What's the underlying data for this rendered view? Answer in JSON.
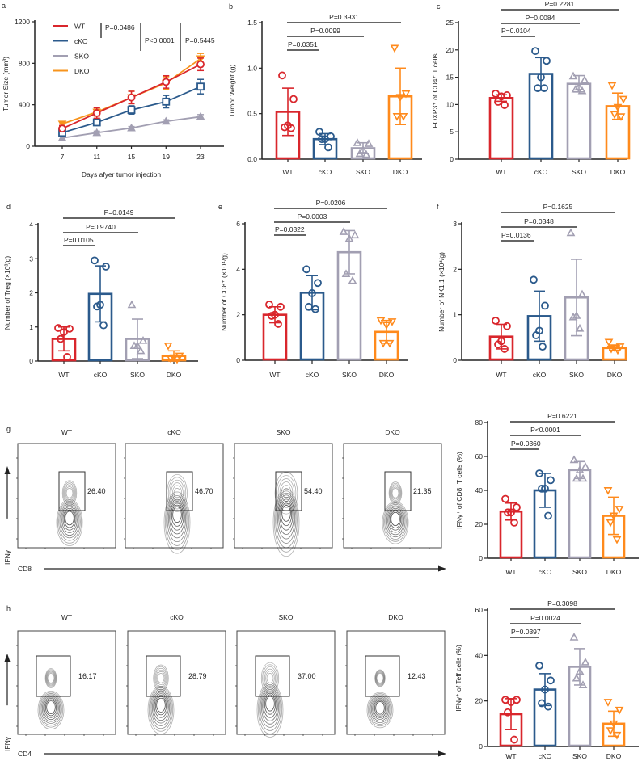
{
  "panel_labels": [
    "a",
    "b",
    "c",
    "d",
    "e",
    "f",
    "g",
    "h"
  ],
  "colors": {
    "WT": "#d9262c",
    "cKO": "#2b5a8c",
    "SKO": "#a29fb2",
    "DKO": "#ff8a1c",
    "DKO_line": "#f7941d",
    "axis": "#222222"
  },
  "chart_data": [
    {
      "id": "a",
      "type": "line",
      "xlabel": "Days afyer tumor injection",
      "ylabel": "Tumor Size (mm³)",
      "x": [
        7,
        11,
        15,
        19,
        23
      ],
      "xticks": [
        "7",
        "11",
        "15",
        "19",
        "23"
      ],
      "ylim": [
        0,
        1200
      ],
      "yticks": [
        "0",
        "400",
        "800",
        "1200"
      ],
      "legend": "top-left",
      "series": [
        {
          "name": "WT",
          "values": [
            170,
            320,
            470,
            620,
            790
          ],
          "errors": [
            30,
            50,
            60,
            60,
            60
          ]
        },
        {
          "name": "cKO",
          "values": [
            130,
            230,
            350,
            430,
            575
          ],
          "errors": [
            20,
            20,
            40,
            60,
            70
          ]
        },
        {
          "name": "SKO",
          "values": [
            80,
            130,
            175,
            240,
            285
          ],
          "errors": [
            15,
            15,
            15,
            15,
            20
          ]
        },
        {
          "name": "DKO",
          "values": [
            215,
            330,
            470,
            610,
            845
          ],
          "errors": [
            20,
            40,
            60,
            60,
            50
          ]
        }
      ],
      "annotations": [
        "P=0.0486",
        "P<0.0001",
        "P=0.5445"
      ]
    },
    {
      "id": "b",
      "type": "bar",
      "ylabel": "Tumor Weight (g)",
      "categories": [
        "WT",
        "cKO",
        "SKO",
        "DKO"
      ],
      "ylim": [
        0,
        1.5
      ],
      "yticks": [
        "0.0",
        "0.5",
        "1.0",
        "1.5"
      ],
      "series": [
        {
          "name": "WT",
          "mean": 0.52,
          "sd": 0.26,
          "points": [
            0.92,
            0.66,
            0.37,
            0.35,
            0.34
          ]
        },
        {
          "name": "cKO",
          "mean": 0.22,
          "sd": 0.06,
          "points": [
            0.3,
            0.25,
            0.22,
            0.22,
            0.13
          ]
        },
        {
          "name": "SKO",
          "mean": 0.12,
          "sd": 0.06,
          "points": [
            0.18,
            0.17,
            0.1,
            0.06,
            0.05
          ]
        },
        {
          "name": "DKO",
          "mean": 0.69,
          "sd": 0.31,
          "points": [
            1.22,
            0.72,
            0.68,
            0.47,
            0.47
          ]
        }
      ],
      "comparisons": [
        {
          "from": "WT",
          "to": "cKO",
          "label": "P=0.0351"
        },
        {
          "from": "WT",
          "to": "SKO",
          "label": "P=0.0099"
        },
        {
          "from": "WT",
          "to": "DKO",
          "label": "P=0.3931"
        }
      ]
    },
    {
      "id": "c",
      "type": "bar",
      "ylabel": "FOXP3⁺ of CD4⁺ T cells",
      "categories": [
        "WT",
        "cKO",
        "SKO",
        "DKO"
      ],
      "ylim": [
        0,
        25
      ],
      "yticks": [
        "0",
        "5",
        "10",
        "15",
        "20",
        "25"
      ],
      "series": [
        {
          "name": "WT",
          "mean": 11.2,
          "sd": 0.6,
          "points": [
            12.0,
            11.7,
            11.5,
            10.5,
            9.9
          ]
        },
        {
          "name": "cKO",
          "mean": 15.6,
          "sd": 3.0,
          "points": [
            19.8,
            18.0,
            15.0,
            13.0,
            13.0
          ]
        },
        {
          "name": "SKO",
          "mean": 13.8,
          "sd": 1.5,
          "points": [
            15.2,
            14.5,
            13.2,
            12.8,
            12.5
          ]
        },
        {
          "name": "DKO",
          "mean": 9.7,
          "sd": 2.4,
          "points": [
            13.5,
            11.0,
            9.5,
            8.2,
            7.8
          ]
        }
      ],
      "comparisons": [
        {
          "from": "WT",
          "to": "cKO",
          "label": "P=0.0104"
        },
        {
          "from": "WT",
          "to": "SKO",
          "label": "P=0.0084"
        },
        {
          "from": "WT",
          "to": "DKO",
          "label": "P=0.2281"
        }
      ]
    },
    {
      "id": "d",
      "type": "bar",
      "ylabel": "Number of Treg (×10³/g)",
      "categories": [
        "WT",
        "cKO",
        "SKO",
        "DKO"
      ],
      "ylim": [
        0,
        4
      ],
      "yticks": [
        "0",
        "1",
        "2",
        "3",
        "4"
      ],
      "series": [
        {
          "name": "WT",
          "mean": 0.65,
          "sd": 0.35,
          "points": [
            0.97,
            0.95,
            0.85,
            0.65,
            0.12
          ]
        },
        {
          "name": "cKO",
          "mean": 1.97,
          "sd": 0.82,
          "points": [
            2.95,
            2.77,
            1.65,
            1.6,
            1.05
          ]
        },
        {
          "name": "SKO",
          "mean": 0.65,
          "sd": 0.58,
          "points": [
            1.65,
            0.6,
            0.45,
            0.45,
            0.3
          ]
        },
        {
          "name": "DKO",
          "mean": 0.15,
          "sd": 0.15,
          "points": [
            0.45,
            0.15,
            0.1,
            0.08,
            0.05
          ]
        }
      ],
      "comparisons": [
        {
          "from": "WT",
          "to": "cKO",
          "label": "P=0.0105"
        },
        {
          "from": "WT",
          "to": "SKO",
          "label": "P=0.9740"
        },
        {
          "from": "WT",
          "to": "DKO",
          "label": "P=0.0149"
        }
      ]
    },
    {
      "id": "e",
      "type": "bar",
      "ylabel": "Number of CD8⁺ (×10⁴/g)",
      "categories": [
        "WT",
        "cKO",
        "SKO",
        "DKO"
      ],
      "ylim": [
        0,
        6
      ],
      "yticks": [
        "0",
        "2",
        "4",
        "6"
      ],
      "series": [
        {
          "name": "WT",
          "mean": 2.0,
          "sd": 0.35,
          "points": [
            2.45,
            2.35,
            2.0,
            1.95,
            1.6
          ]
        },
        {
          "name": "cKO",
          "mean": 2.97,
          "sd": 0.75,
          "points": [
            4.0,
            3.4,
            2.95,
            2.35,
            2.25
          ]
        },
        {
          "name": "SKO",
          "mean": 4.75,
          "sd": 0.95,
          "points": [
            5.65,
            5.5,
            5.35,
            3.8,
            3.5
          ]
        },
        {
          "name": "DKO",
          "mean": 1.25,
          "sd": 0.5,
          "points": [
            1.75,
            1.7,
            1.55,
            0.75,
            0.75
          ]
        }
      ],
      "comparisons": [
        {
          "from": "WT",
          "to": "cKO",
          "label": "P=0.0322"
        },
        {
          "from": "WT",
          "to": "SKO",
          "label": "P=0.0003"
        },
        {
          "from": "WT",
          "to": "DKO",
          "label": "P=0.0206"
        }
      ]
    },
    {
      "id": "f",
      "type": "bar",
      "ylabel": "Number of NK1.1 (×10⁴/g)",
      "categories": [
        "WT",
        "cKO",
        "SKO",
        "DKO"
      ],
      "ylim": [
        0,
        3
      ],
      "yticks": [
        "0",
        "1",
        "2",
        "3"
      ],
      "series": [
        {
          "name": "WT",
          "mean": 0.52,
          "sd": 0.27,
          "points": [
            0.87,
            0.75,
            0.42,
            0.35,
            0.25
          ]
        },
        {
          "name": "cKO",
          "mean": 0.97,
          "sd": 0.55,
          "points": [
            1.77,
            1.2,
            0.65,
            0.55,
            0.3
          ]
        },
        {
          "name": "SKO",
          "mean": 1.38,
          "sd": 0.84,
          "points": [
            2.8,
            1.45,
            0.98,
            0.95,
            0.7
          ]
        },
        {
          "name": "DKO",
          "mean": 0.27,
          "sd": 0.05,
          "points": [
            0.4,
            0.3,
            0.28,
            0.25,
            0.22
          ]
        }
      ],
      "comparisons": [
        {
          "from": "WT",
          "to": "cKO",
          "label": "P=0.0136"
        },
        {
          "from": "WT",
          "to": "SKO",
          "label": "P=0.0348"
        },
        {
          "from": "WT",
          "to": "DKO",
          "label": "P=0.1625"
        }
      ]
    },
    {
      "id": "g_flow",
      "type": "contour",
      "xlabel": "CD8",
      "ylabel": "IFNγ",
      "plots": [
        {
          "title": "WT",
          "gate_percent": "26.40"
        },
        {
          "title": "cKO",
          "gate_percent": "46.70"
        },
        {
          "title": "SKO",
          "gate_percent": "54.40"
        },
        {
          "title": "DKO",
          "gate_percent": "21.35"
        }
      ]
    },
    {
      "id": "g_bar",
      "type": "bar",
      "ylabel": "IFNγ⁺ of CD8⁺T cells (%)",
      "categories": [
        "WT",
        "cKO",
        "SKO",
        "DKO"
      ],
      "ylim": [
        0,
        80
      ],
      "yticks": [
        "0",
        "20",
        "40",
        "60",
        "80"
      ],
      "series": [
        {
          "name": "WT",
          "mean": 27.5,
          "sd": 5,
          "points": [
            35,
            30,
            27,
            27,
            21
          ]
        },
        {
          "name": "cKO",
          "mean": 40,
          "sd": 10,
          "points": [
            50,
            46,
            41,
            41,
            25
          ]
        },
        {
          "name": "SKO",
          "mean": 52,
          "sd": 5,
          "points": [
            58,
            54,
            52,
            47,
            47
          ]
        },
        {
          "name": "DKO",
          "mean": 25,
          "sd": 11,
          "points": [
            40,
            29,
            25,
            21,
            11
          ]
        }
      ],
      "comparisons": [
        {
          "from": "WT",
          "to": "cKO",
          "label": "P=0.0360"
        },
        {
          "from": "WT",
          "to": "SKO",
          "label": "P<0.0001"
        },
        {
          "from": "WT",
          "to": "DKO",
          "label": "P=0.6221"
        }
      ]
    },
    {
      "id": "h_flow",
      "type": "contour",
      "xlabel": "CD4",
      "ylabel": "IFNγ",
      "plots": [
        {
          "title": "WT",
          "gate_percent": "16.17"
        },
        {
          "title": "cKO",
          "gate_percent": "28.79"
        },
        {
          "title": "SKO",
          "gate_percent": "37.00"
        },
        {
          "title": "DKO",
          "gate_percent": "12.43"
        }
      ]
    },
    {
      "id": "h_bar",
      "type": "bar",
      "ylabel": "IFNγ⁺ of Teff cells (%)",
      "categories": [
        "WT",
        "cKO",
        "SKO",
        "DKO"
      ],
      "ylim": [
        0,
        60
      ],
      "yticks": [
        "0",
        "20",
        "40",
        "60"
      ],
      "series": [
        {
          "name": "WT",
          "mean": 14.2,
          "sd": 6.8,
          "points": [
            20.5,
            20.5,
            19.5,
            15,
            3
          ]
        },
        {
          "name": "cKO",
          "mean": 25,
          "sd": 7,
          "points": [
            35.5,
            29,
            25,
            19,
            17.5
          ]
        },
        {
          "name": "SKO",
          "mean": 35,
          "sd": 8,
          "points": [
            48,
            37,
            33,
            30,
            27
          ]
        },
        {
          "name": "DKO",
          "mean": 10,
          "sd": 5.5,
          "points": [
            19.5,
            16,
            10,
            7,
            5
          ]
        }
      ],
      "comparisons": [
        {
          "from": "WT",
          "to": "cKO",
          "label": "P=0.0397"
        },
        {
          "from": "WT",
          "to": "SKO",
          "label": "P=0.0024"
        },
        {
          "from": "WT",
          "to": "DKO",
          "label": "P=0.3098"
        }
      ]
    }
  ]
}
